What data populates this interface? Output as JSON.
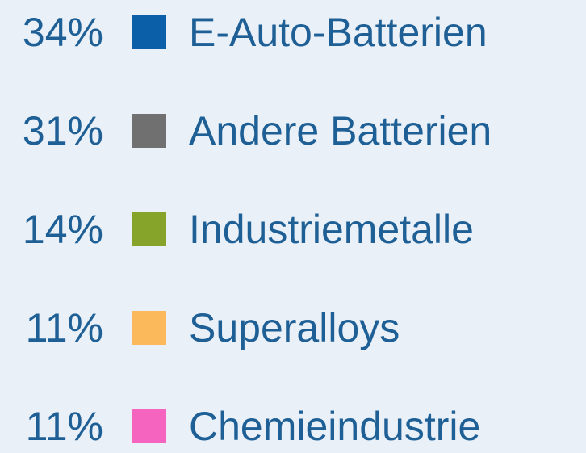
{
  "items": [
    {
      "percent": "34%",
      "label": "E-Auto-Batterien",
      "color": "#0b5ea8"
    },
    {
      "percent": "31%",
      "label": "Andere Batterien",
      "color": "#707070"
    },
    {
      "percent": "14%",
      "label": "Industriemetalle",
      "color": "#86a32a"
    },
    {
      "percent": "11%",
      "label": "Superalloys",
      "color": "#fbb95c"
    },
    {
      "percent": "11%",
      "label": "Chemieindustrie",
      "color": "#f565c0"
    }
  ]
}
